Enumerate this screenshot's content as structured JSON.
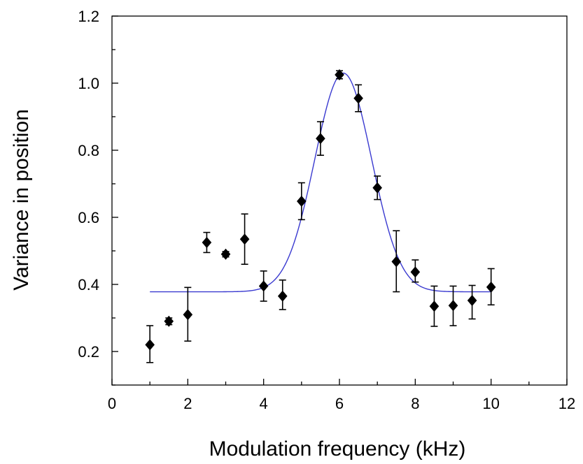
{
  "chart_data": {
    "type": "scatter",
    "title": "",
    "xlabel": "Modulation frequency (kHz)",
    "ylabel": "Variance in position",
    "xlim": [
      0,
      12
    ],
    "ylim": [
      0.1,
      1.2
    ],
    "x_ticks": [
      0,
      2,
      4,
      6,
      8,
      10,
      12
    ],
    "x_minor": [
      1,
      3,
      5,
      7,
      9,
      11
    ],
    "y_ticks": [
      0.2,
      0.4,
      0.6,
      0.8,
      1.0,
      1.2
    ],
    "y_tick_labels": [
      "0.2",
      "0.4",
      "0.6",
      "0.8",
      "1.0",
      "1.2"
    ],
    "y_minor": [
      0.1,
      0.3,
      0.5,
      0.7,
      0.9,
      1.1
    ],
    "grid": false,
    "legend": "none",
    "marker_color": "#000000",
    "fit_color": "#3a3ad0",
    "series": [
      {
        "type": "scatter",
        "marker": "diamond",
        "x": [
          1.0,
          1.5,
          2.0,
          2.5,
          3.0,
          3.5,
          4.0,
          4.5,
          5.0,
          5.5,
          6.0,
          6.5,
          7.0,
          7.5,
          8.0,
          8.5,
          9.0,
          9.5,
          10.0
        ],
        "y": [
          0.22,
          0.29,
          0.31,
          0.525,
          0.49,
          0.535,
          0.395,
          0.365,
          0.648,
          0.835,
          1.025,
          0.955,
          0.688,
          0.468,
          0.437,
          0.335,
          0.337,
          0.352,
          0.392
        ],
        "err_low": [
          0.053,
          0.01,
          0.079,
          0.03,
          0.008,
          0.075,
          0.045,
          0.04,
          0.055,
          0.05,
          0.012,
          0.04,
          0.035,
          0.09,
          0.03,
          0.06,
          0.06,
          0.055,
          0.053
        ],
        "err_high": [
          0.057,
          0.01,
          0.081,
          0.03,
          0.008,
          0.075,
          0.045,
          0.048,
          0.055,
          0.05,
          0.012,
          0.04,
          0.035,
          0.092,
          0.036,
          0.06,
          0.058,
          0.045,
          0.055
        ]
      },
      {
        "type": "line",
        "model": "gaussian",
        "baseline": 0.378,
        "amplitude": 0.652,
        "center": 6.1,
        "sigma": 0.75,
        "x_range": [
          1.0,
          10.0
        ]
      }
    ]
  }
}
